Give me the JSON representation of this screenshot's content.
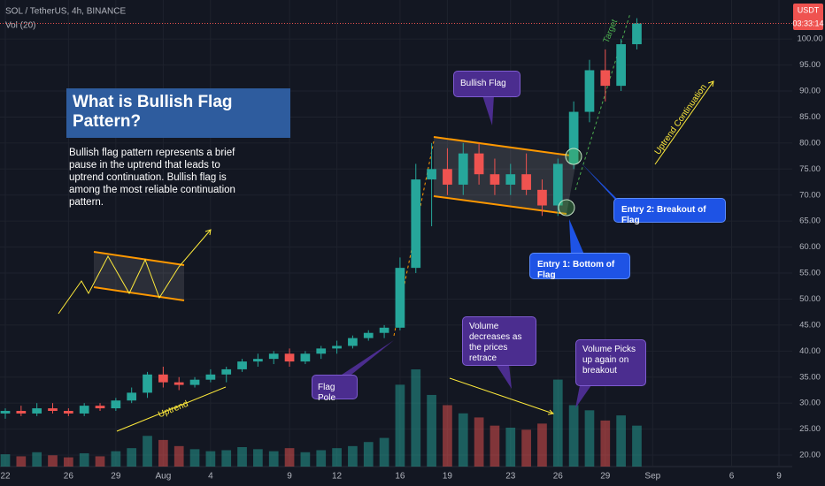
{
  "chart_data": {
    "type": "candlestick",
    "title": "SOL / TetherUS, 4h, BINANCE",
    "subtitle": "Vol (20)",
    "categories": [
      "22",
      null,
      null,
      null,
      "26",
      null,
      null,
      "29",
      null,
      null,
      "Aug",
      null,
      null,
      "4",
      null,
      null,
      null,
      null,
      "9",
      null,
      null,
      "12",
      null,
      null,
      null,
      "16",
      null,
      null,
      "19",
      null,
      null,
      null,
      "23",
      null,
      null,
      "26",
      null,
      null,
      "29",
      null,
      null,
      "Sep",
      null,
      null,
      null,
      null,
      "6",
      null,
      null,
      "9"
    ],
    "open": [
      28,
      28.5,
      28,
      29,
      28.5,
      28,
      29.5,
      29,
      30.5,
      32,
      35.5,
      34,
      33.5,
      34.5,
      35.5,
      36.5,
      38,
      38.5,
      39.5,
      38,
      39.5,
      40.5,
      41,
      42.5,
      43.5,
      44.5,
      56,
      73,
      75,
      72,
      78,
      74,
      72,
      74,
      71,
      68,
      76,
      86,
      94,
      91,
      99,
      null,
      null,
      null,
      null,
      null,
      null,
      null,
      null,
      null
    ],
    "high": [
      29,
      29.5,
      30,
      30,
      29,
      30,
      30,
      31,
      33,
      36,
      37,
      35,
      35,
      36.5,
      37,
      38.5,
      39.5,
      40,
      40.5,
      40,
      41,
      42,
      43,
      44,
      45,
      58,
      76,
      80,
      79,
      80,
      80,
      77,
      76,
      78,
      73,
      77,
      88,
      96,
      98,
      100,
      104,
      null,
      null,
      null,
      null,
      null,
      null,
      null,
      null,
      null
    ],
    "low": [
      27,
      27.5,
      27.5,
      28,
      27.5,
      27.5,
      28.5,
      28.5,
      30,
      31,
      33,
      32.5,
      33,
      34,
      34,
      36,
      37,
      37.5,
      37,
      37.5,
      38.5,
      39.5,
      40.5,
      42,
      42.5,
      44,
      55,
      64,
      70,
      70,
      72,
      70,
      70,
      70,
      66,
      66,
      75,
      84,
      88,
      90,
      98,
      null,
      null,
      null,
      null,
      null,
      null,
      null,
      null,
      null
    ],
    "close": [
      28.5,
      28,
      29,
      28.5,
      28,
      29.5,
      29,
      30.5,
      32,
      35.5,
      34,
      33.5,
      34.5,
      35.5,
      36.5,
      38,
      38.5,
      39.5,
      38,
      39.5,
      40.5,
      41,
      42.5,
      43.5,
      44.5,
      56,
      73,
      75,
      72,
      78,
      74,
      72,
      74,
      71,
      68,
      76,
      86,
      94,
      91,
      99,
      103,
      null,
      null,
      null,
      null,
      null,
      null,
      null,
      null,
      null
    ],
    "volume": [
      12,
      10,
      14,
      11,
      9,
      13,
      10,
      15,
      18,
      30,
      26,
      20,
      17,
      15,
      16,
      19,
      17,
      15,
      18,
      14,
      16,
      18,
      20,
      24,
      28,
      80,
      95,
      70,
      60,
      52,
      48,
      40,
      38,
      36,
      42,
      85,
      60,
      55,
      45,
      50,
      40,
      null,
      null,
      null,
      null,
      null,
      null,
      null,
      null,
      null
    ],
    "up_color": "#26a69a",
    "down_color": "#ef5350",
    "ylim": [
      17.8,
      107.5
    ],
    "yticks": [
      {
        "value": 20,
        "label": "20.00"
      },
      {
        "value": 25,
        "label": "25.00"
      },
      {
        "value": 30,
        "label": "30.00"
      },
      {
        "value": 35,
        "label": "35.00"
      },
      {
        "value": 40,
        "label": "40.00"
      },
      {
        "value": 45,
        "label": "45.00"
      },
      {
        "value": 50,
        "label": "50.00"
      },
      {
        "value": 55,
        "label": "55.00"
      },
      {
        "value": 60,
        "label": "60.00"
      },
      {
        "value": 65,
        "label": "65.00"
      },
      {
        "value": 70,
        "label": "70.00"
      },
      {
        "value": 75,
        "label": "75.00"
      },
      {
        "value": 80,
        "label": "80.00"
      },
      {
        "value": 85,
        "label": "85.00"
      },
      {
        "value": 90,
        "label": "90.00"
      },
      {
        "value": 95,
        "label": "95.00"
      },
      {
        "value": 100,
        "label": "100.00"
      }
    ],
    "grid": true,
    "price_label": {
      "currency": "USDT",
      "countdown": "03:33:14"
    },
    "annotations": [
      "What is Bullish Flag Pattern?",
      "Bullish flag pattern represents a brief pause in the uptrend that leads to uptrend continuation. Bullish flag is among the most reliable continuation pattern.",
      "Bullish Flag",
      "Entry 1: Bottom of Flag",
      "Entry 2: Breakout of Flag",
      "Uptrend Continuation",
      "Target",
      "Flag Pole",
      "Uptrend",
      "Volume decreases as the prices retrace",
      "Volume Picks up again on breakout"
    ]
  }
}
